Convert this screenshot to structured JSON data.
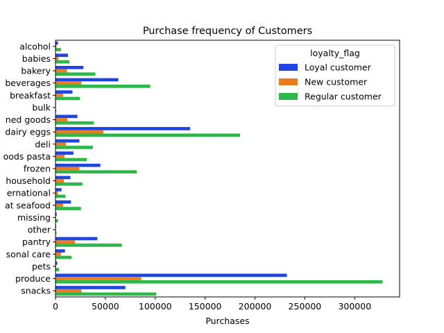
{
  "chart_data": {
    "type": "bar",
    "orientation": "horizontal",
    "title": "Purchase frequency of Customers",
    "xlabel": "Purchases",
    "ylabel": "",
    "xlim": [
      0,
      345000
    ],
    "x_ticks": [
      0,
      50000,
      100000,
      150000,
      200000,
      250000,
      300000
    ],
    "x_tick_labels": [
      "0",
      "50000",
      "100000",
      "150000",
      "200000",
      "250000",
      "300000"
    ],
    "categories": [
      "alcohol",
      "babies",
      "bakery",
      "beverages",
      "breakfast",
      "bulk",
      "canned goods",
      "dairy eggs",
      "deli",
      "dry goods pasta",
      "frozen",
      "household",
      "international",
      "meat seafood",
      "missing",
      "other",
      "pantry",
      "personal care",
      "pets",
      "produce",
      "snacks"
    ],
    "category_labels_visible": [
      "alcohol",
      "babies",
      "bakery",
      "beverages",
      "breakfast",
      "bulk",
      "ned goods",
      "dairy eggs",
      "deli",
      "oods pasta",
      "frozen",
      "household",
      "ernational",
      "at seafood",
      "missing",
      "other",
      "pantry",
      "sonal care",
      "pets",
      "produce",
      "snacks"
    ],
    "legend": {
      "title": "loyalty_flag",
      "position": "top-right"
    },
    "grid": false,
    "series": [
      {
        "name": "Loyal customer",
        "color": "#1f45e0",
        "values": [
          2500,
          12500,
          28000,
          63000,
          17000,
          500,
          22000,
          135000,
          24000,
          18000,
          45000,
          15000,
          6000,
          15500,
          1200,
          600,
          42000,
          9500,
          1800,
          232000,
          70000
        ]
      },
      {
        "name": "New customer",
        "color": "#e87d22",
        "values": [
          1000,
          3000,
          11500,
          26000,
          7500,
          200,
          12000,
          48000,
          10500,
          9000,
          24000,
          8500,
          2500,
          7500,
          500,
          300,
          19500,
          5500,
          700,
          86000,
          26000
        ]
      },
      {
        "name": "Regular customer",
        "color": "#2db84a",
        "values": [
          5500,
          14000,
          40000,
          95000,
          24500,
          700,
          38500,
          185000,
          37500,
          31500,
          81500,
          27000,
          10000,
          25500,
          2500,
          1000,
          66500,
          16000,
          3500,
          328000,
          101000
        ]
      }
    ]
  }
}
